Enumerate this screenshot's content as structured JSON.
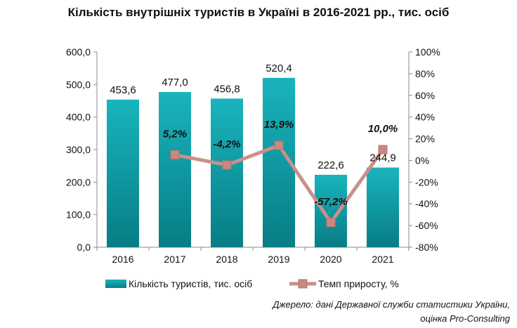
{
  "chart_data": {
    "type": "bar",
    "title": "Кількість внутрішніх туристів в Україні в 2016-2021 рр., тис. осіб",
    "categories": [
      "2016",
      "2017",
      "2018",
      "2019",
      "2020",
      "2021"
    ],
    "series": [
      {
        "name": "Кількість туристів, тис. осіб",
        "type": "bar",
        "axis": "left",
        "values": [
          453.6,
          477.0,
          456.8,
          520.4,
          222.6,
          244.9
        ],
        "labels": [
          "453,6",
          "477,0",
          "456,8",
          "520,4",
          "222,6",
          "244,9"
        ],
        "color": "#12a3ad"
      },
      {
        "name": "Темп приросту, %",
        "type": "line",
        "axis": "right",
        "values": [
          null,
          5.2,
          -4.2,
          13.9,
          -57.2,
          10.0
        ],
        "labels": [
          "",
          "5,2%",
          "-4,2%",
          "13,9%",
          "-57,2%",
          "10,0%"
        ],
        "color": "#c9908a"
      }
    ],
    "y_left": {
      "ylim": [
        0,
        600
      ],
      "ticks": [
        0,
        100,
        200,
        300,
        400,
        500,
        600
      ],
      "tick_labels": [
        "0,0",
        "100,0",
        "200,0",
        "300,0",
        "400,0",
        "500,0",
        "600,0"
      ]
    },
    "y_right": {
      "ylim": [
        -80,
        100
      ],
      "ticks": [
        -80,
        -60,
        -40,
        -20,
        0,
        20,
        40,
        60,
        80,
        100
      ],
      "tick_labels": [
        "-80%",
        "-60%",
        "-40%",
        "-20%",
        "0%",
        "20%",
        "40%",
        "60%",
        "80%",
        "100%"
      ]
    },
    "grid": false,
    "legend_placement": "bottom"
  },
  "source": {
    "line1": "Джерело: дані Державної служби статистики України,",
    "line2": "оцінка Pro-Consulting"
  }
}
